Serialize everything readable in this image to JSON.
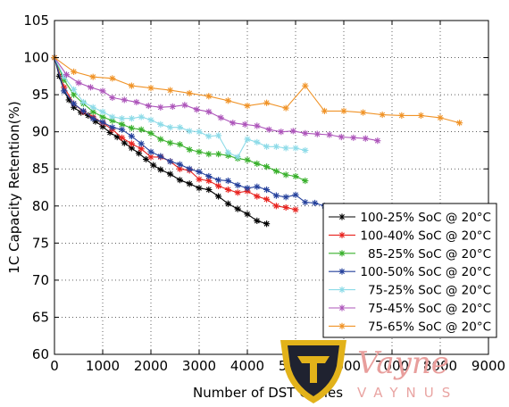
{
  "chart_data": {
    "type": "line",
    "title": "",
    "xlabel": "Number of DST Cycles",
    "ylabel": "1C Capacity Retention(%)",
    "xlim": [
      0,
      9000
    ],
    "ylim": [
      60,
      105
    ],
    "xticks": [
      0,
      1000,
      2000,
      3000,
      4000,
      5000,
      6000,
      7000,
      8000,
      9000
    ],
    "yticks": [
      60,
      65,
      70,
      75,
      80,
      85,
      90,
      95,
      100,
      105
    ],
    "xtick_labels": [
      "0",
      "1000",
      "2000",
      "3000",
      "4000",
      "5000",
      "6000",
      "7000",
      "8000",
      "9000"
    ],
    "ytick_labels": [
      "60",
      "65",
      "70",
      "75",
      "80",
      "85",
      "90",
      "95",
      "100",
      "105"
    ],
    "grid": true,
    "legend_position": "lower-right",
    "series": [
      {
        "name": "100-25% SoC @ 20°C",
        "color": "#000000",
        "marker": "star",
        "x": [
          0,
          100,
          200,
          300,
          400,
          550,
          700,
          850,
          1000,
          1150,
          1300,
          1450,
          1600,
          1750,
          1900,
          2050,
          2200,
          2400,
          2600,
          2800,
          3000,
          3200,
          3400,
          3600,
          3800,
          4000,
          4200,
          4400
        ],
        "y": [
          100,
          97.5,
          95.5,
          94.3,
          93.3,
          92.6,
          92.2,
          91.4,
          90.7,
          89.9,
          89.3,
          88.5,
          87.8,
          87.1,
          86.3,
          85.5,
          84.9,
          84.3,
          83.5,
          83.0,
          82.4,
          82.2,
          81.3,
          80.3,
          79.6,
          78.9,
          78.0,
          77.6
        ]
      },
      {
        "name": "100-40% SoC @ 20°C",
        "color": "#e8231f",
        "marker": "star",
        "x": [
          0,
          200,
          400,
          600,
          800,
          1000,
          1200,
          1400,
          1600,
          1800,
          2000,
          2200,
          2400,
          2600,
          2800,
          3000,
          3200,
          3400,
          3600,
          3800,
          4000,
          4200,
          4400,
          4600,
          4800,
          5000
        ],
        "y": [
          100,
          96.0,
          93.8,
          92.7,
          92.0,
          91.2,
          90.3,
          89.2,
          88.4,
          87.7,
          86.6,
          86.6,
          86.0,
          85.0,
          84.8,
          83.6,
          83.4,
          82.7,
          82.2,
          81.8,
          82.0,
          81.3,
          80.9,
          80.0,
          79.8,
          79.5
        ]
      },
      {
        "name": "85-25% SoC @ 20°C",
        "color": "#39b02c",
        "marker": "star",
        "x": [
          0,
          200,
          400,
          600,
          800,
          1000,
          1200,
          1400,
          1600,
          1800,
          2000,
          2200,
          2400,
          2600,
          2800,
          3000,
          3200,
          3400,
          3600,
          3800,
          4000,
          4200,
          4400,
          4600,
          4800,
          5000,
          5200
        ],
        "y": [
          100,
          97.0,
          95.0,
          93.8,
          92.7,
          92.0,
          91.5,
          91.0,
          90.5,
          90.3,
          89.8,
          89.0,
          88.5,
          88.3,
          87.6,
          87.3,
          87.0,
          87.0,
          86.8,
          86.4,
          86.2,
          85.7,
          85.3,
          84.7,
          84.2,
          84.0,
          83.4
        ]
      },
      {
        "name": "100-50% SoC @ 20°C",
        "color": "#25419c",
        "marker": "star",
        "x": [
          0,
          200,
          400,
          600,
          800,
          1000,
          1200,
          1400,
          1600,
          1800,
          2000,
          2200,
          2400,
          2600,
          2800,
          3000,
          3200,
          3400,
          3600,
          3800,
          4000,
          4200,
          4400,
          4600,
          4800,
          5000,
          5200,
          5400,
          5600
        ],
        "y": [
          100,
          95.5,
          93.8,
          92.8,
          91.8,
          91.3,
          90.6,
          90.3,
          89.4,
          88.4,
          87.3,
          86.7,
          86.0,
          85.6,
          85.0,
          84.6,
          84.0,
          83.5,
          83.4,
          82.8,
          82.4,
          82.6,
          82.2,
          81.4,
          81.2,
          81.5,
          80.5,
          80.4,
          80.0
        ]
      },
      {
        "name": "75-25% SoC @ 20°C",
        "color": "#8ddbe8",
        "marker": "star",
        "x": [
          0,
          200,
          400,
          600,
          800,
          1000,
          1200,
          1400,
          1600,
          1800,
          2000,
          2200,
          2400,
          2600,
          2800,
          3000,
          3200,
          3400,
          3600,
          3800,
          4000,
          4200,
          4400,
          4600,
          4800,
          5000,
          5200
        ],
        "y": [
          100,
          97.4,
          95.7,
          94.0,
          93.3,
          92.7,
          92.0,
          91.8,
          91.8,
          92.0,
          91.6,
          91.0,
          90.6,
          90.6,
          90.1,
          90.0,
          89.4,
          89.5,
          87.2,
          86.6,
          89.0,
          88.6,
          88.0,
          88.0,
          87.8,
          87.8,
          87.5
        ]
      },
      {
        "name": "75-45% SoC @ 20°C",
        "color": "#ad55ba",
        "marker": "star",
        "x": [
          0,
          250,
          500,
          750,
          1000,
          1200,
          1450,
          1700,
          1950,
          2200,
          2450,
          2700,
          2950,
          3200,
          3450,
          3700,
          3950,
          4200,
          4450,
          4700,
          4950,
          5200,
          5450,
          5700,
          5950,
          6200,
          6450,
          6700
        ],
        "y": [
          100,
          97.7,
          96.6,
          96.0,
          95.5,
          94.6,
          94.3,
          94.0,
          93.5,
          93.3,
          93.4,
          93.6,
          93.0,
          92.7,
          91.9,
          91.2,
          91.0,
          90.8,
          90.3,
          90.0,
          90.1,
          89.8,
          89.7,
          89.6,
          89.3,
          89.2,
          89.1,
          88.8
        ]
      },
      {
        "name": "75-65% SoC @ 20°C",
        "color": "#f09327",
        "marker": "star",
        "x": [
          0,
          400,
          800,
          1200,
          1600,
          2000,
          2400,
          2800,
          3200,
          3600,
          4000,
          4400,
          4800,
          5200,
          5600,
          6000,
          6400,
          6800,
          7200,
          7600,
          8000,
          8400
        ],
        "y": [
          100,
          98.1,
          97.4,
          97.2,
          96.2,
          95.9,
          95.6,
          95.2,
          94.8,
          94.2,
          93.5,
          93.9,
          93.2,
          96.2,
          92.8,
          92.8,
          92.6,
          92.3,
          92.2,
          92.2,
          91.9,
          91.2
        ]
      }
    ]
  },
  "watermark": {
    "brand": "Vayne",
    "subtitle": "VAYNUS"
  }
}
